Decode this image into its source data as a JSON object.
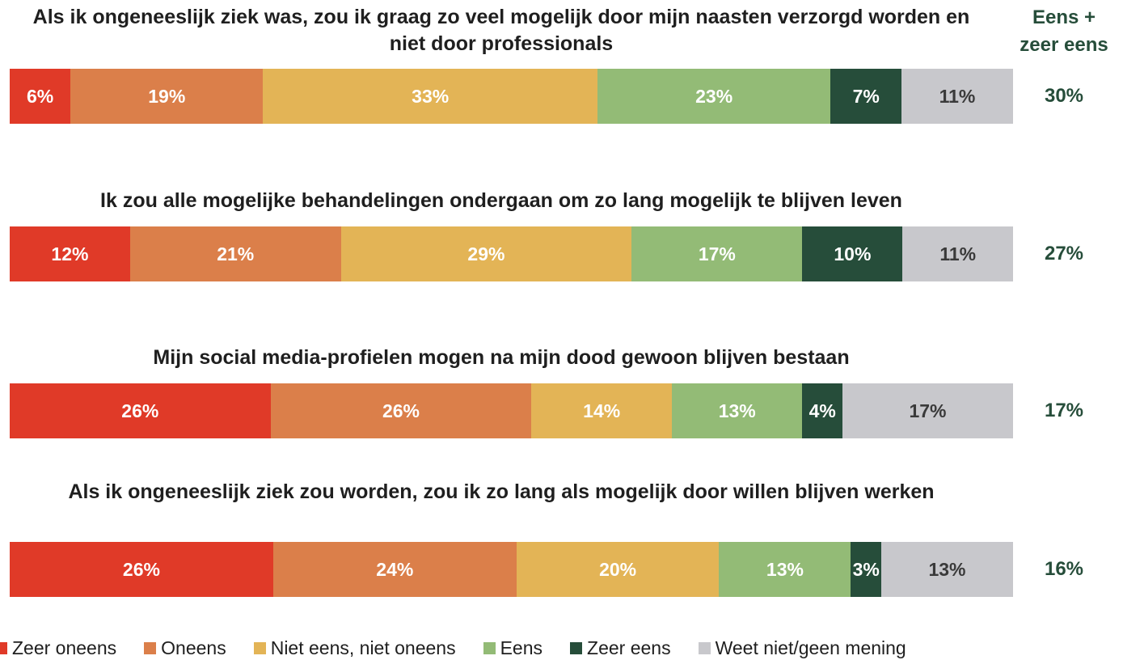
{
  "chart_data": {
    "type": "stacked-bar",
    "categories": [
      "Als ik ongeneeslijk ziek was, zou ik graag zo veel mogelijk door mijn naasten verzorgd worden en niet door professionals",
      "Ik zou alle mogelijke behandelingen ondergaan om zo lang mogelijk te blijven leven",
      "Mijn social media-profielen mogen na mijn dood gewoon blijven bestaan",
      "Als ik ongeneeslijk ziek zou worden, zou ik zo lang als mogelijk door willen blijven werken"
    ],
    "series": [
      {
        "name": "Zeer oneens",
        "color": "#e03a28",
        "label_color": "#ffffff",
        "values": [
          6,
          12,
          26,
          26
        ],
        "value_labels": [
          "6%",
          "12%",
          "26%",
          "26%"
        ]
      },
      {
        "name": "Oneens",
        "color": "#db7f4a",
        "label_color": "#ffffff",
        "values": [
          19,
          21,
          26,
          24
        ],
        "value_labels": [
          "19%",
          "21%",
          "26%",
          "24%"
        ]
      },
      {
        "name": "Niet eens, niet oneens",
        "color": "#e3b456",
        "label_color": "#ffffff",
        "values": [
          33,
          29,
          14,
          20
        ],
        "value_labels": [
          "33%",
          "29%",
          "14%",
          "20%"
        ]
      },
      {
        "name": "Eens",
        "color": "#93bb76",
        "label_color": "#ffffff",
        "values": [
          23,
          17,
          13,
          13
        ],
        "value_labels": [
          "23%",
          "17%",
          "13%",
          "13%"
        ]
      },
      {
        "name": "Zeer eens",
        "color": "#264d3a",
        "label_color": "#ffffff",
        "values": [
          7,
          10,
          4,
          3
        ],
        "value_labels": [
          "7%",
          "10%",
          "4%",
          "3%"
        ]
      },
      {
        "name": "Weet niet/geen mening",
        "color": "#c8c8cc",
        "label_color": "#3a3a3a",
        "values": [
          11,
          11,
          17,
          13
        ],
        "value_labels": [
          "11%",
          "11%",
          "17%",
          "13%"
        ]
      }
    ],
    "totals": {
      "title": "Eens + zeer eens",
      "values": [
        30,
        27,
        17,
        16
      ],
      "value_labels": [
        "30%",
        "27%",
        "17%",
        "16%"
      ]
    }
  }
}
